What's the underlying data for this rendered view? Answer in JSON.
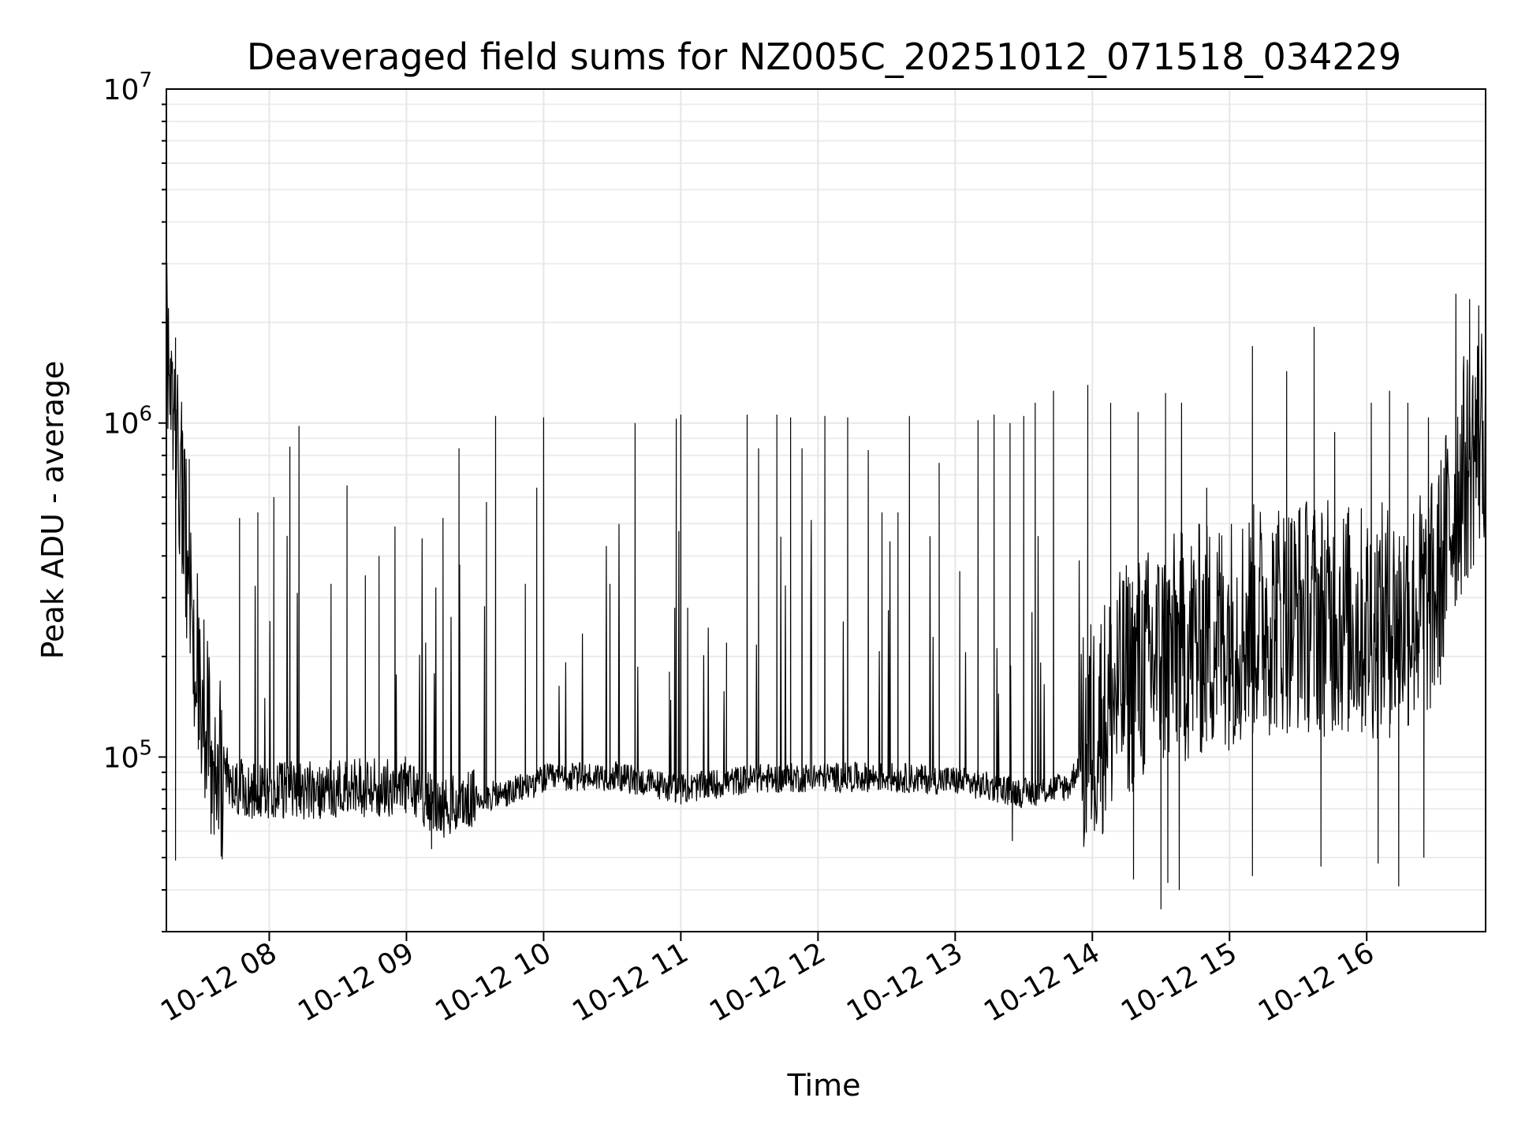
{
  "chart_data": {
    "type": "line",
    "title": "Deaveraged field sums for NZ005C_20251012_071518_034229",
    "xlabel": "Time",
    "ylabel": "Peak ADU - average",
    "yscale": "log",
    "ylim": [
      30000,
      10000000
    ],
    "xlim": [
      "10-12 07:15",
      "10-12 16:52"
    ],
    "x_ticks": [
      "10-12 08",
      "10-12 09",
      "10-12 10",
      "10-12 11",
      "10-12 12",
      "10-12 13",
      "10-12 14",
      "10-12 15",
      "10-12 16"
    ],
    "y_ticks": [
      {
        "base": "10",
        "exp": "5",
        "value": 100000
      },
      {
        "base": "10",
        "exp": "6",
        "value": 1000000
      },
      {
        "base": "10",
        "exp": "7",
        "value": 10000000
      }
    ],
    "grid": true,
    "line_color": "#000000",
    "series": [
      {
        "points": [
          [
            "10-12 07:15",
            1900000
          ],
          [
            "10-12 07:17",
            1400000
          ],
          [
            "10-12 07:19",
            1100000
          ],
          [
            "10-12 07:21",
            700000
          ],
          [
            "10-12 07:23",
            500000
          ],
          [
            "10-12 07:25",
            350000
          ],
          [
            "10-12 07:27",
            220000
          ],
          [
            "10-12 07:30",
            160000
          ],
          [
            "10-12 07:33",
            120000
          ],
          [
            "10-12 07:36",
            100000
          ],
          [
            "10-12 07:40",
            90000
          ],
          [
            "10-12 07:45",
            82000
          ],
          [
            "10-12 07:50",
            80000
          ],
          [
            "10-12 08:00",
            80000
          ],
          [
            "10-12 08:30",
            80000
          ],
          [
            "10-12 09:00",
            82000
          ],
          [
            "10-12 09:15",
            70000
          ],
          [
            "10-12 09:30",
            75000
          ],
          [
            "10-12 09:45",
            78000
          ],
          [
            "10-12 10:00",
            86000
          ],
          [
            "10-12 10:30",
            88000
          ],
          [
            "10-12 11:00",
            80000
          ],
          [
            "10-12 11:30",
            86000
          ],
          [
            "10-12 12:00",
            87000
          ],
          [
            "10-12 12:30",
            87000
          ],
          [
            "10-12 13:00",
            85000
          ],
          [
            "10-12 13:30",
            78000
          ],
          [
            "10-12 13:50",
            82000
          ],
          [
            "10-12 14:00",
            120000
          ],
          [
            "10-12 14:15",
            170000
          ],
          [
            "10-12 14:30",
            200000
          ],
          [
            "10-12 14:45",
            220000
          ],
          [
            "10-12 15:00",
            240000
          ],
          [
            "10-12 15:15",
            260000
          ],
          [
            "10-12 15:30",
            270000
          ],
          [
            "10-12 15:45",
            260000
          ],
          [
            "10-12 16:00",
            250000
          ],
          [
            "10-12 16:15",
            260000
          ],
          [
            "10-12 16:30",
            300000
          ],
          [
            "10-12 16:40",
            650000
          ],
          [
            "10-12 16:52",
            1000000
          ]
        ]
      }
    ],
    "spikes": [
      [
        "10-12 07:22",
        950000
      ],
      [
        "10-12 07:25",
        780000
      ],
      [
        "10-12 07:47",
        520000
      ],
      [
        "10-12 07:55",
        540000
      ],
      [
        "10-12 08:02",
        600000
      ],
      [
        "10-12 08:09",
        850000
      ],
      [
        "10-12 08:13",
        980000
      ],
      [
        "10-12 08:27",
        330000
      ],
      [
        "10-12 08:34",
        650000
      ],
      [
        "10-12 08:42",
        350000
      ],
      [
        "10-12 08:48",
        400000
      ],
      [
        "10-12 08:55",
        490000
      ],
      [
        "10-12 09:16",
        520000
      ],
      [
        "10-12 09:23",
        840000
      ],
      [
        "10-12 09:35",
        580000
      ],
      [
        "10-12 09:39",
        1050000
      ],
      [
        "10-12 09:52",
        330000
      ],
      [
        "10-12 09:57",
        640000
      ],
      [
        "10-12 10:00",
        1040000
      ],
      [
        "10-12 10:29",
        330000
      ],
      [
        "10-12 10:40",
        1000000
      ],
      [
        "10-12 10:55",
        180000
      ],
      [
        "10-12 10:58",
        1030000
      ],
      [
        "10-12 11:00",
        1060000
      ],
      [
        "10-12 11:03",
        280000
      ],
      [
        "10-12 11:20",
        220000
      ],
      [
        "10-12 11:29",
        1060000
      ],
      [
        "10-12 11:34",
        840000
      ],
      [
        "10-12 11:42",
        1060000
      ],
      [
        "10-12 11:48",
        1040000
      ],
      [
        "10-12 11:53",
        840000
      ],
      [
        "10-12 12:03",
        1050000
      ],
      [
        "10-12 12:13",
        1040000
      ],
      [
        "10-12 12:22",
        830000
      ],
      [
        "10-12 12:28",
        540000
      ],
      [
        "10-12 12:35",
        540000
      ],
      [
        "10-12 12:40",
        1050000
      ],
      [
        "10-12 12:53",
        760000
      ],
      [
        "10-12 13:02",
        360000
      ],
      [
        "10-12 13:10",
        1020000
      ],
      [
        "10-12 13:17",
        1060000
      ],
      [
        "10-12 13:24",
        1000000
      ],
      [
        "10-12 13:30",
        1050000
      ],
      [
        "10-12 13:35",
        1150000
      ],
      [
        "10-12 13:43",
        1250000
      ],
      [
        "10-12 13:58",
        1300000
      ],
      [
        "10-12 14:08",
        1150000
      ],
      [
        "10-12 14:20",
        1080000
      ],
      [
        "10-12 14:32",
        1230000
      ],
      [
        "10-12 14:39",
        1150000
      ],
      [
        "10-12 14:50",
        640000
      ],
      [
        "10-12 15:10",
        1700000
      ],
      [
        "10-12 15:25",
        1430000
      ],
      [
        "10-12 15:37",
        1940000
      ],
      [
        "10-12 15:46",
        940000
      ],
      [
        "10-12 16:02",
        1150000
      ],
      [
        "10-12 16:10",
        1250000
      ],
      [
        "10-12 16:18",
        1150000
      ],
      [
        "10-12 16:27",
        1040000
      ],
      [
        "10-12 16:39",
        2440000
      ],
      [
        "10-12 16:45",
        2350000
      ],
      [
        "10-12 16:49",
        2250000
      ]
    ],
    "dips": [
      [
        "10-12 07:19",
        49000
      ],
      [
        "10-12 09:11",
        53000
      ],
      [
        "10-12 13:25",
        56000
      ],
      [
        "10-12 14:18",
        43000
      ],
      [
        "10-12 14:30",
        35000
      ],
      [
        "10-12 14:33",
        42000
      ],
      [
        "10-12 14:38",
        40000
      ],
      [
        "10-12 15:10",
        44000
      ],
      [
        "10-12 15:40",
        47000
      ],
      [
        "10-12 16:05",
        48000
      ],
      [
        "10-12 16:14",
        41000
      ],
      [
        "10-12 16:25",
        50000
      ]
    ]
  }
}
